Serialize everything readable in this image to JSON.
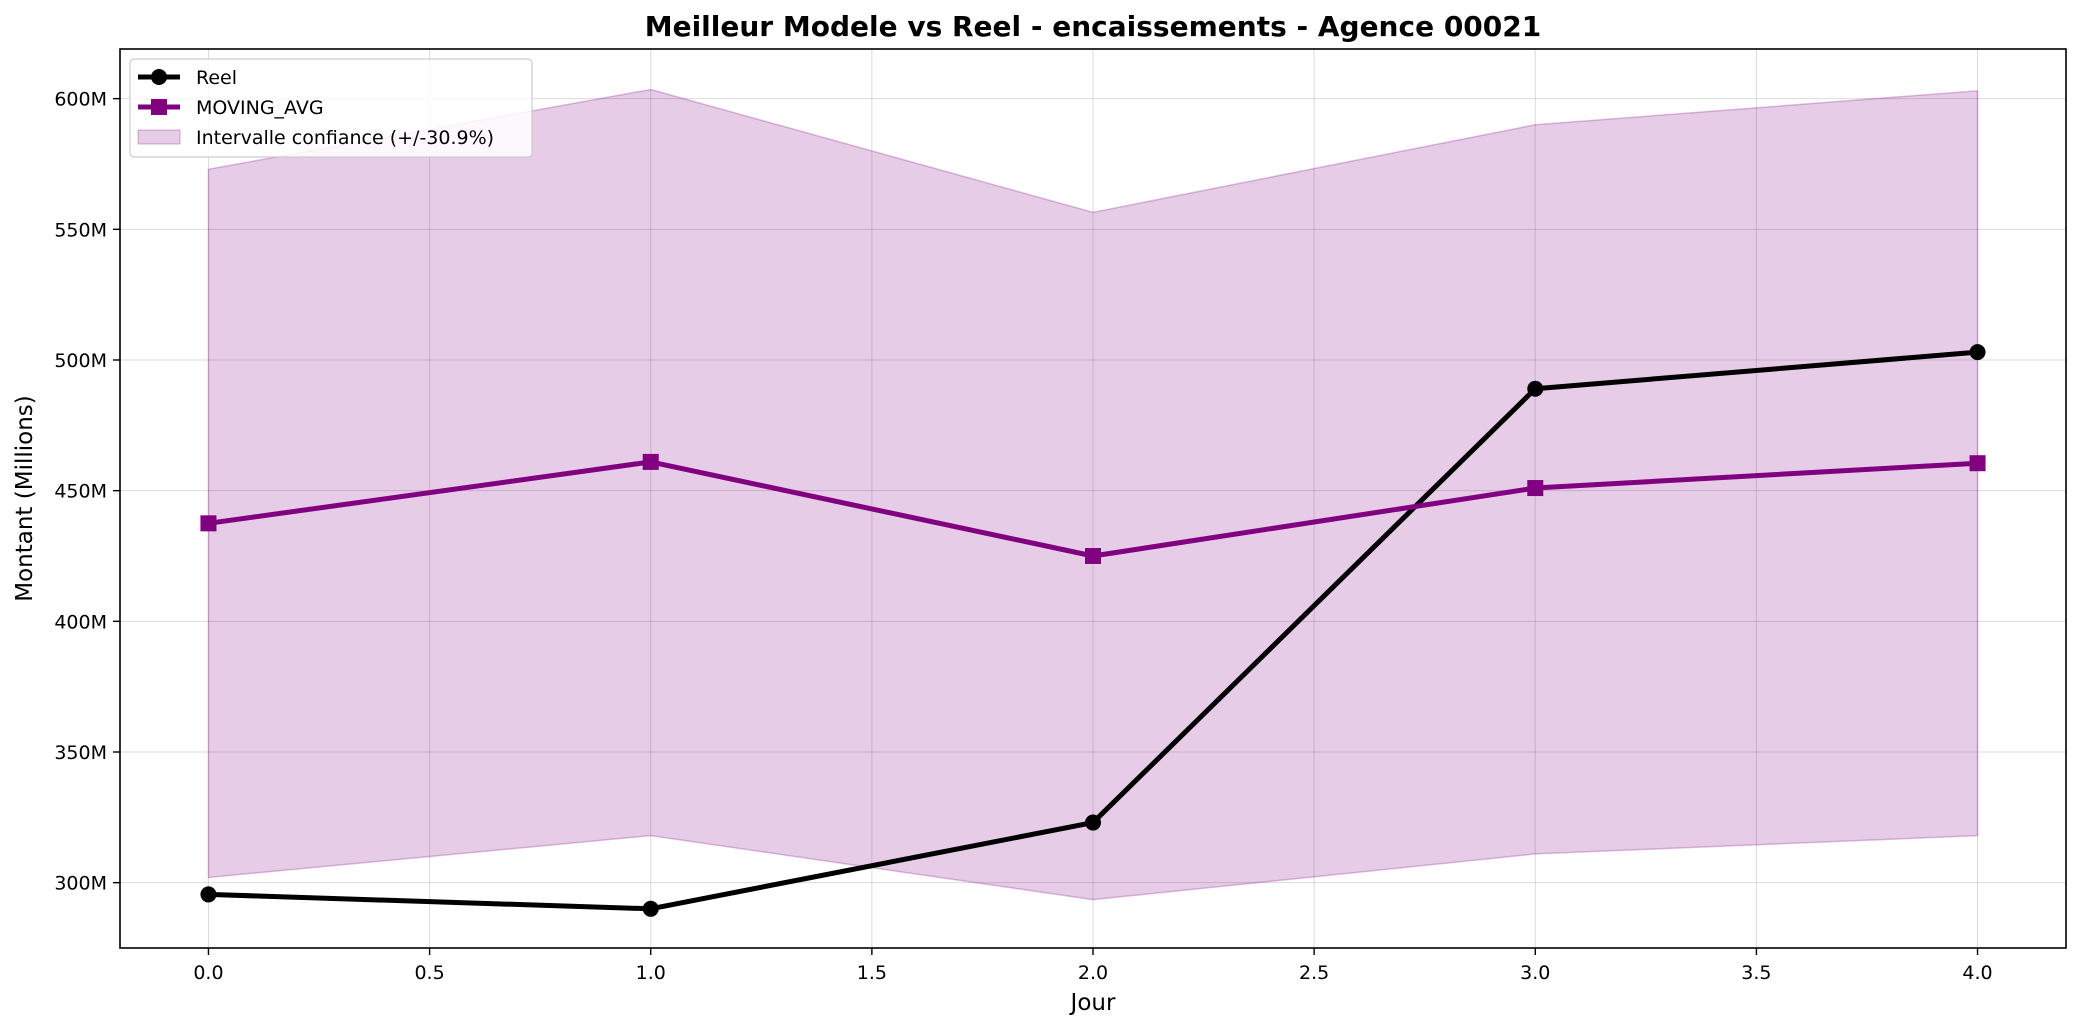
{
  "chart_data": {
    "type": "line",
    "title": "Meilleur Modele vs Reel - encaissements - Agence 00021",
    "xlabel": "Jour",
    "ylabel": "Montant (Millions)",
    "xlim": [
      -0.2,
      4.2
    ],
    "ylim": [
      275,
      619
    ],
    "x_ticks": [
      0.0,
      0.5,
      1.0,
      1.5,
      2.0,
      2.5,
      3.0,
      3.5,
      4.0
    ],
    "x_tick_labels": [
      "0.0",
      "0.5",
      "1.0",
      "1.5",
      "2.0",
      "2.5",
      "3.0",
      "3.5",
      "4.0"
    ],
    "y_ticks": [
      300,
      350,
      400,
      450,
      500,
      550,
      600
    ],
    "y_tick_labels": [
      "300M",
      "350M",
      "400M",
      "450M",
      "500M",
      "550M",
      "600M"
    ],
    "grid": true,
    "legend_position": "top-left",
    "x": [
      0,
      1,
      2,
      3,
      4
    ],
    "series": [
      {
        "name": "Reel",
        "values": [
          295.5,
          290,
          323,
          489,
          503
        ],
        "color": "#000000",
        "marker": "circle"
      },
      {
        "name": "MOVING_AVG",
        "values": [
          437.5,
          461,
          425,
          451,
          460.5
        ],
        "color": "#800080",
        "marker": "square"
      }
    ],
    "band": {
      "name": "Intervalle confiance (+/-30.9%)",
      "lower": [
        302,
        318,
        293.5,
        311,
        318
      ],
      "upper": [
        573,
        603.5,
        556.5,
        590,
        603
      ],
      "color": "#800080"
    }
  }
}
